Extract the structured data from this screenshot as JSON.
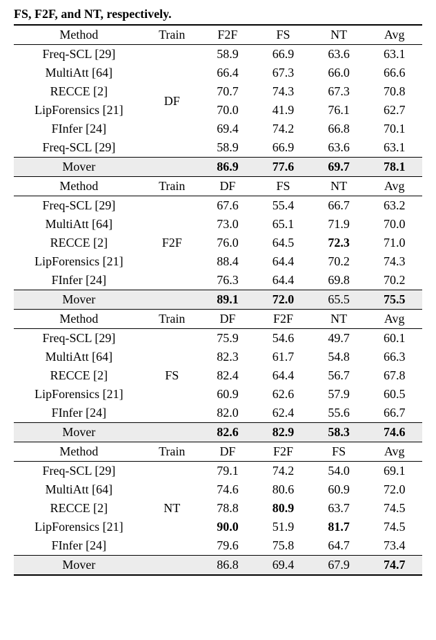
{
  "caption": "FS, F2F, and NT, respectively.",
  "sections": [
    {
      "header": [
        "Method",
        "Train",
        "F2F",
        "FS",
        "NT",
        "Avg"
      ],
      "train": "DF",
      "rows": [
        {
          "method": "Freq-SCL [29]",
          "v": [
            "58.9",
            "66.9",
            "63.6",
            "63.1"
          ],
          "bold": [
            false,
            false,
            false,
            false
          ]
        },
        {
          "method": "MultiAtt [64]",
          "v": [
            "66.4",
            "67.3",
            "66.0",
            "66.6"
          ],
          "bold": [
            false,
            false,
            false,
            false
          ]
        },
        {
          "method": "RECCE [2]",
          "v": [
            "70.7",
            "74.3",
            "67.3",
            "70.8"
          ],
          "bold": [
            false,
            false,
            false,
            false
          ]
        },
        {
          "method": "LipForensics [21]",
          "v": [
            "70.0",
            "41.9",
            "76.1",
            "62.7"
          ],
          "bold": [
            false,
            false,
            false,
            false
          ]
        },
        {
          "method": "FInfer [24]",
          "v": [
            "69.4",
            "74.2",
            "66.8",
            "70.1"
          ],
          "bold": [
            false,
            false,
            false,
            false
          ]
        },
        {
          "method": "Freq-SCL [29]",
          "v": [
            "58.9",
            "66.9",
            "63.6",
            "63.1"
          ],
          "bold": [
            false,
            false,
            false,
            false
          ]
        }
      ],
      "mover": {
        "method": "Mover",
        "v": [
          "86.9",
          "77.6",
          "69.7",
          "78.1"
        ],
        "bold": [
          true,
          true,
          true,
          true
        ]
      }
    },
    {
      "header": [
        "Method",
        "Train",
        "DF",
        "FS",
        "NT",
        "Avg"
      ],
      "train": "F2F",
      "rows": [
        {
          "method": "Freq-SCL [29]",
          "v": [
            "67.6",
            "55.4",
            "66.7",
            "63.2"
          ],
          "bold": [
            false,
            false,
            false,
            false
          ]
        },
        {
          "method": "MultiAtt [64]",
          "v": [
            "73.0",
            "65.1",
            "71.9",
            "70.0"
          ],
          "bold": [
            false,
            false,
            false,
            false
          ]
        },
        {
          "method": "RECCE [2]",
          "v": [
            "76.0",
            "64.5",
            "72.3",
            "71.0"
          ],
          "bold": [
            false,
            false,
            true,
            false
          ]
        },
        {
          "method": "LipForensics [21]",
          "v": [
            "88.4",
            "64.4",
            "70.2",
            "74.3"
          ],
          "bold": [
            false,
            false,
            false,
            false
          ]
        },
        {
          "method": "FInfer [24]",
          "v": [
            "76.3",
            "64.4",
            "69.8",
            "70.2"
          ],
          "bold": [
            false,
            false,
            false,
            false
          ]
        }
      ],
      "mover": {
        "method": "Mover",
        "v": [
          "89.1",
          "72.0",
          "65.5",
          "75.5"
        ],
        "bold": [
          true,
          true,
          false,
          true
        ]
      }
    },
    {
      "header": [
        "Method",
        "Train",
        "DF",
        "F2F",
        "NT",
        "Avg"
      ],
      "train": "FS",
      "rows": [
        {
          "method": "Freq-SCL [29]",
          "v": [
            "75.9",
            "54.6",
            "49.7",
            "60.1"
          ],
          "bold": [
            false,
            false,
            false,
            false
          ]
        },
        {
          "method": "MultiAtt [64]",
          "v": [
            "82.3",
            "61.7",
            "54.8",
            "66.3"
          ],
          "bold": [
            false,
            false,
            false,
            false
          ]
        },
        {
          "method": "RECCE [2]",
          "v": [
            "82.4",
            "64.4",
            "56.7",
            "67.8"
          ],
          "bold": [
            false,
            false,
            false,
            false
          ]
        },
        {
          "method": "LipForensics [21]",
          "v": [
            "60.9",
            "62.6",
            "57.9",
            "60.5"
          ],
          "bold": [
            false,
            false,
            false,
            false
          ]
        },
        {
          "method": "FInfer [24]",
          "v": [
            "82.0",
            "62.4",
            "55.6",
            "66.7"
          ],
          "bold": [
            false,
            false,
            false,
            false
          ]
        }
      ],
      "mover": {
        "method": "Mover",
        "v": [
          "82.6",
          "82.9",
          "58.3",
          "74.6"
        ],
        "bold": [
          true,
          true,
          true,
          true
        ]
      }
    },
    {
      "header": [
        "Method",
        "Train",
        "DF",
        "F2F",
        "FS",
        "Avg"
      ],
      "train": "NT",
      "rows": [
        {
          "method": "Freq-SCL [29]",
          "v": [
            "79.1",
            "74.2",
            "54.0",
            "69.1"
          ],
          "bold": [
            false,
            false,
            false,
            false
          ]
        },
        {
          "method": "MultiAtt [64]",
          "v": [
            "74.6",
            "80.6",
            "60.9",
            "72.0"
          ],
          "bold": [
            false,
            false,
            false,
            false
          ]
        },
        {
          "method": "RECCE [2]",
          "v": [
            "78.8",
            "80.9",
            "63.7",
            "74.5"
          ],
          "bold": [
            false,
            true,
            false,
            false
          ]
        },
        {
          "method": "LipForensics [21]",
          "v": [
            "90.0",
            "51.9",
            "81.7",
            "74.5"
          ],
          "bold": [
            true,
            false,
            true,
            false
          ]
        },
        {
          "method": "FInfer [24]",
          "v": [
            "79.6",
            "75.8",
            "64.7",
            "73.4"
          ],
          "bold": [
            false,
            false,
            false,
            false
          ]
        }
      ],
      "mover": {
        "method": "Mover",
        "v": [
          "86.8",
          "69.4",
          "67.9",
          "74.7"
        ],
        "bold": [
          false,
          false,
          false,
          true
        ]
      }
    }
  ]
}
